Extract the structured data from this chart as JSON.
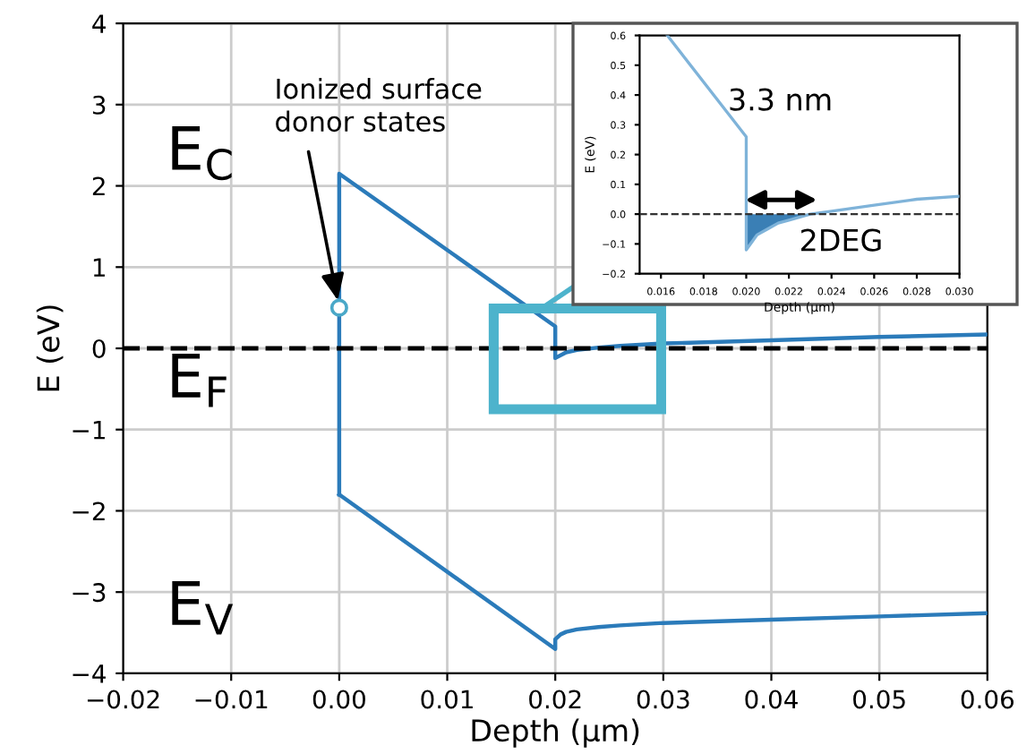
{
  "chart_data": [
    {
      "type": "line",
      "xlabel": "Depth (μm)",
      "ylabel": "E (eV)",
      "xlim": [
        -0.02,
        0.06
      ],
      "ylim": [
        -4,
        4
      ],
      "xticks": [
        {
          "value": -0.02,
          "label": "−0.02"
        },
        {
          "value": -0.01,
          "label": "−0.01"
        },
        {
          "value": 0,
          "label": "0.00"
        },
        {
          "value": 0.01,
          "label": "0.01"
        },
        {
          "value": 0.02,
          "label": "0.02"
        },
        {
          "value": 0.03,
          "label": "0.03"
        },
        {
          "value": 0.04,
          "label": "0.04"
        },
        {
          "value": 0.05,
          "label": "0.05"
        },
        {
          "value": 0.06,
          "label": "0.06"
        }
      ],
      "yticks": [
        {
          "value": -4,
          "label": "−4"
        },
        {
          "value": -3,
          "label": "−3"
        },
        {
          "value": -2,
          "label": "−2"
        },
        {
          "value": -1,
          "label": "−1"
        },
        0,
        1,
        2,
        3,
        4
      ],
      "grid": true,
      "series": [
        {
          "color": "#2b7bba",
          "x": [
            0,
            0,
            0.02,
            0.02,
            0.021,
            0.022,
            0.024,
            0.026,
            0.03,
            0.04,
            0.05,
            0.06
          ],
          "values": [
            -1.8,
            2.15,
            0.27,
            -0.12,
            -0.05,
            -0.02,
            0.01,
            0.03,
            0.06,
            0.1,
            0.14,
            0.17
          ]
        },
        {
          "color": "#2b7bba",
          "x": [
            0,
            0.02,
            0.02,
            0.0205,
            0.021,
            0.022,
            0.024,
            0.026,
            0.03,
            0.04,
            0.05,
            0.06
          ],
          "values": [
            -1.8,
            -3.7,
            -3.58,
            -3.52,
            -3.49,
            -3.46,
            -3.43,
            -3.41,
            -3.38,
            -3.34,
            -3.3,
            -3.26
          ]
        },
        {
          "type": "scatter",
          "marker": "circle",
          "color": "#4aa8c8",
          "x": [
            0
          ],
          "values": [
            0.5
          ]
        }
      ],
      "ref_lines": [
        {
          "axis": "y",
          "value": 0,
          "color": "#000000",
          "line_style": "dashed"
        }
      ],
      "annotations": [
        {
          "text": "Ionized surface\ndonor states",
          "x": 0,
          "y": 0.5
        },
        "E$_{C}$",
        "E$_{F}$",
        "E$_{V}$"
      ]
    },
    {
      "type": "line",
      "xlabel": "Depth (μm)",
      "ylabel": "E (eV)",
      "xlim": [
        0.015,
        0.03
      ],
      "ylim": [
        -0.2,
        0.6
      ],
      "xticks": [
        {
          "value": 0.016,
          "label": "0.016"
        },
        {
          "value": 0.018,
          "label": "0.018"
        },
        {
          "value": 0.02,
          "label": "0.020"
        },
        {
          "value": 0.022,
          "label": "0.022"
        },
        {
          "value": 0.024,
          "label": "0.024"
        },
        {
          "value": 0.026,
          "label": "0.026"
        },
        {
          "value": 0.028,
          "label": "0.028"
        },
        {
          "value": 0.03,
          "label": "0.030"
        }
      ],
      "yticks": [
        {
          "value": -0.2,
          "label": "−0.2"
        },
        {
          "value": -0.1,
          "label": "−0.1"
        },
        {
          "value": 0,
          "label": "0.0"
        },
        {
          "value": 0.1,
          "label": "0.1"
        },
        {
          "value": 0.2,
          "label": "0.2"
        },
        {
          "value": 0.3,
          "label": "0.3"
        },
        {
          "value": 0.4,
          "label": "0.4"
        },
        {
          "value": 0.5,
          "label": "0.5"
        },
        {
          "value": 0.6,
          "label": "0.6"
        }
      ],
      "series": [
        {
          "color": "#7fb3d9",
          "x": [
            0.0163,
            0.02,
            0.02,
            0.0205,
            0.021,
            0.0215,
            0.022,
            0.023,
            0.024,
            0.026,
            0.028,
            0.03
          ],
          "values": [
            0.6,
            0.26,
            -0.12,
            -0.07,
            -0.05,
            -0.03,
            -0.02,
            0.0,
            0.01,
            0.03,
            0.05,
            0.06
          ]
        },
        {
          "type": "area",
          "color": "#3a7fb5",
          "x": [
            0.02,
            0.0205,
            0.021,
            0.0215,
            0.022,
            0.0225,
            0.023
          ],
          "values": [
            -0.12,
            -0.07,
            -0.05,
            -0.03,
            -0.02,
            -0.01,
            0.0
          ]
        }
      ],
      "ref_lines": [
        {
          "axis": "y",
          "value": 0,
          "color": "#333333",
          "line_style": "dashed"
        }
      ],
      "annotations": [
        "3.3 nm",
        "2DEG"
      ]
    }
  ]
}
